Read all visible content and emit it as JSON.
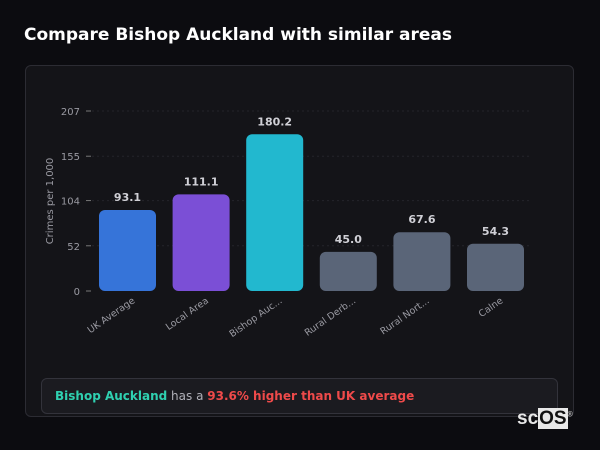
{
  "title": "Compare Bishop Auckland with similar areas",
  "chart_data": {
    "type": "bar",
    "categories": [
      "UK Average",
      "Local Area",
      "Bishop Auc...",
      "Rural Derb...",
      "Rural Nort...",
      "Calne"
    ],
    "values": [
      93.1,
      111.1,
      180.2,
      45.0,
      67.6,
      54.3
    ],
    "value_labels": [
      "93.1",
      "111.1",
      "180.2",
      "45.0",
      "67.6",
      "54.3"
    ],
    "colors": [
      "#3674d9",
      "#7b4fd6",
      "#22b8cf",
      "#5a6578",
      "#5a6578",
      "#5a6578"
    ],
    "ylabel": "Crimes per 1,000",
    "yticks": [
      0,
      52,
      104,
      155,
      207
    ],
    "ylim": [
      0,
      207
    ],
    "grid": true
  },
  "banner": {
    "place": "Bishop Auckland",
    "middle": " has a ",
    "highlight": "93.6% higher than UK average"
  },
  "logo": {
    "text": "scOS",
    "mark": "®"
  }
}
